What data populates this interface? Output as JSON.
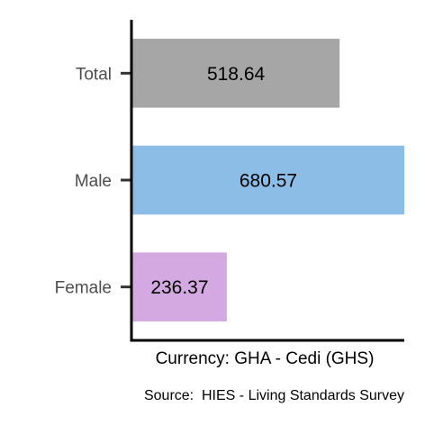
{
  "chart_data": {
    "type": "bar",
    "orientation": "horizontal",
    "categories": [
      "Total",
      "Male",
      "Female"
    ],
    "values": [
      518.64,
      680.57,
      236.37
    ],
    "value_labels": [
      "518.64",
      "680.57",
      "236.37"
    ],
    "colors": [
      "#a6a6a6",
      "#8bbde6",
      "#d4a9e2"
    ],
    "xlabel": "Currency: GHA - Cedi (GHS)",
    "ylabel": "",
    "xlim": [
      0,
      680.57
    ],
    "grid": false,
    "legend": "none"
  },
  "caption": "Source:  HIES - Living Standards Survey"
}
